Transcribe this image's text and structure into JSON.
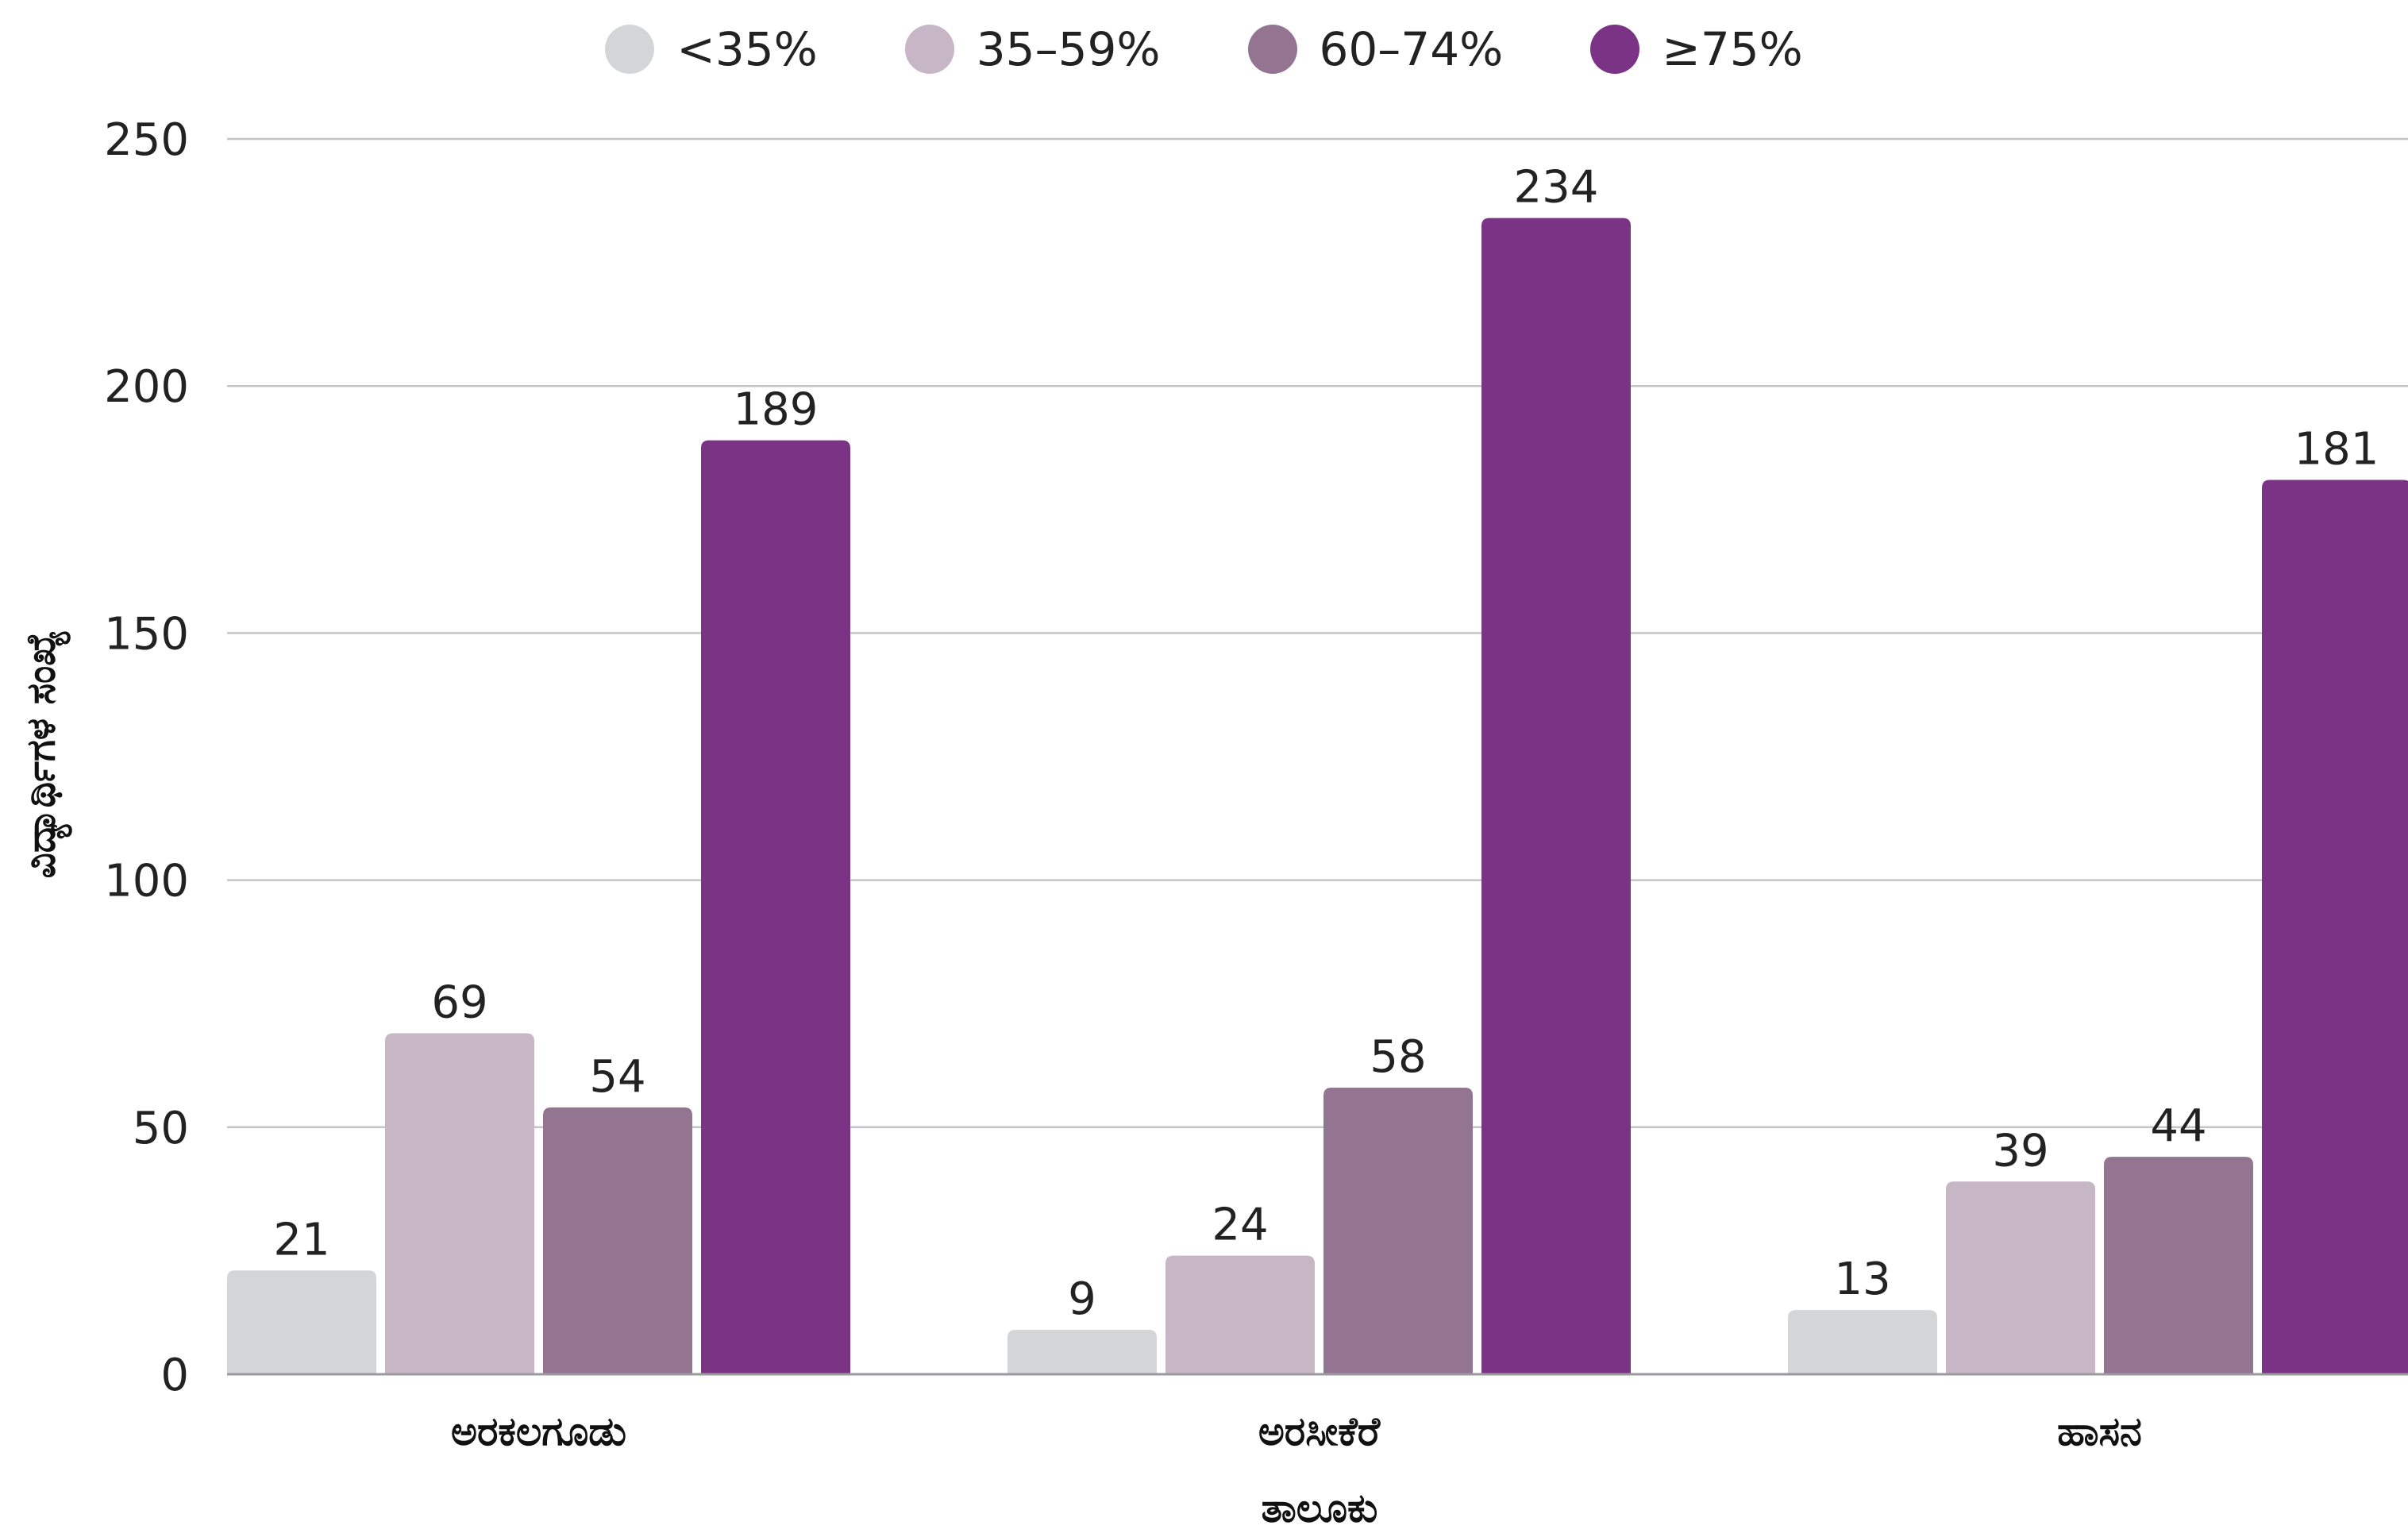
{
  "chart_data": {
    "type": "bar",
    "categories": [
      "ಅರಕಲಗೂಡು",
      "ಅರಸೀಕೆರೆ",
      "ಹಾಸನ"
    ],
    "series": [
      {
        "name": "<35%",
        "color": "#d4d5d7",
        "values": [
          21,
          9,
          13
        ]
      },
      {
        "name": "35–59%",
        "color": "#c6b6c6",
        "values": [
          69,
          24,
          39
        ]
      },
      {
        "name": "60–74%",
        "color": "#947591",
        "values": [
          54,
          58,
          44
        ]
      },
      {
        "name": "≥75%",
        "color": "#7b3385",
        "values": [
          189,
          234,
          181
        ]
      }
    ],
    "xlabel": "ತಾಲೂಕು",
    "ylabel": "ವಿದ್ಯಾರ್ಥಿಗಳ ಸಂಖ್ಯೆ",
    "ylim": [
      0,
      250
    ],
    "yticks": [
      0,
      50,
      100,
      150,
      200,
      250
    ],
    "grid": true,
    "legend_position": "top",
    "data_labels": true
  }
}
